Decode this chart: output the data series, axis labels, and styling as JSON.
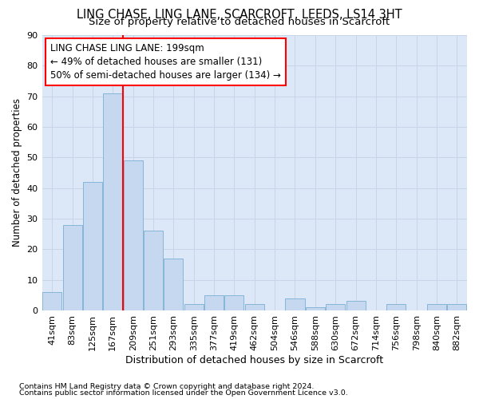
{
  "title1": "LING CHASE, LING LANE, SCARCROFT, LEEDS, LS14 3HT",
  "title2": "Size of property relative to detached houses in Scarcroft",
  "xlabel": "Distribution of detached houses by size in Scarcroft",
  "ylabel": "Number of detached properties",
  "bar_labels": [
    "41sqm",
    "83sqm",
    "125sqm",
    "167sqm",
    "209sqm",
    "251sqm",
    "293sqm",
    "335sqm",
    "377sqm",
    "419sqm",
    "462sqm",
    "504sqm",
    "546sqm",
    "588sqm",
    "630sqm",
    "672sqm",
    "714sqm",
    "756sqm",
    "798sqm",
    "840sqm",
    "882sqm"
  ],
  "bar_values": [
    6,
    28,
    42,
    71,
    49,
    26,
    17,
    2,
    5,
    5,
    2,
    0,
    4,
    1,
    2,
    3,
    0,
    2,
    0,
    2,
    2
  ],
  "bar_color": "#c5d8f0",
  "bar_edge_color": "#7aafd4",
  "vline_x": 3.5,
  "vline_color": "red",
  "annotation_text": "LING CHASE LING LANE: 199sqm\n← 49% of detached houses are smaller (131)\n50% of semi-detached houses are larger (134) →",
  "annotation_box_color": "white",
  "annotation_box_edge_color": "red",
  "ylim": [
    0,
    90
  ],
  "yticks": [
    0,
    10,
    20,
    30,
    40,
    50,
    60,
    70,
    80,
    90
  ],
  "grid_color": "#c8d4e8",
  "bg_color": "#dce8f8",
  "footnote1": "Contains HM Land Registry data © Crown copyright and database right 2024.",
  "footnote2": "Contains public sector information licensed under the Open Government Licence v3.0.",
  "title1_fontsize": 10.5,
  "title2_fontsize": 9.5,
  "xlabel_fontsize": 9,
  "ylabel_fontsize": 8.5,
  "tick_fontsize": 8,
  "annotation_fontsize": 8.5
}
